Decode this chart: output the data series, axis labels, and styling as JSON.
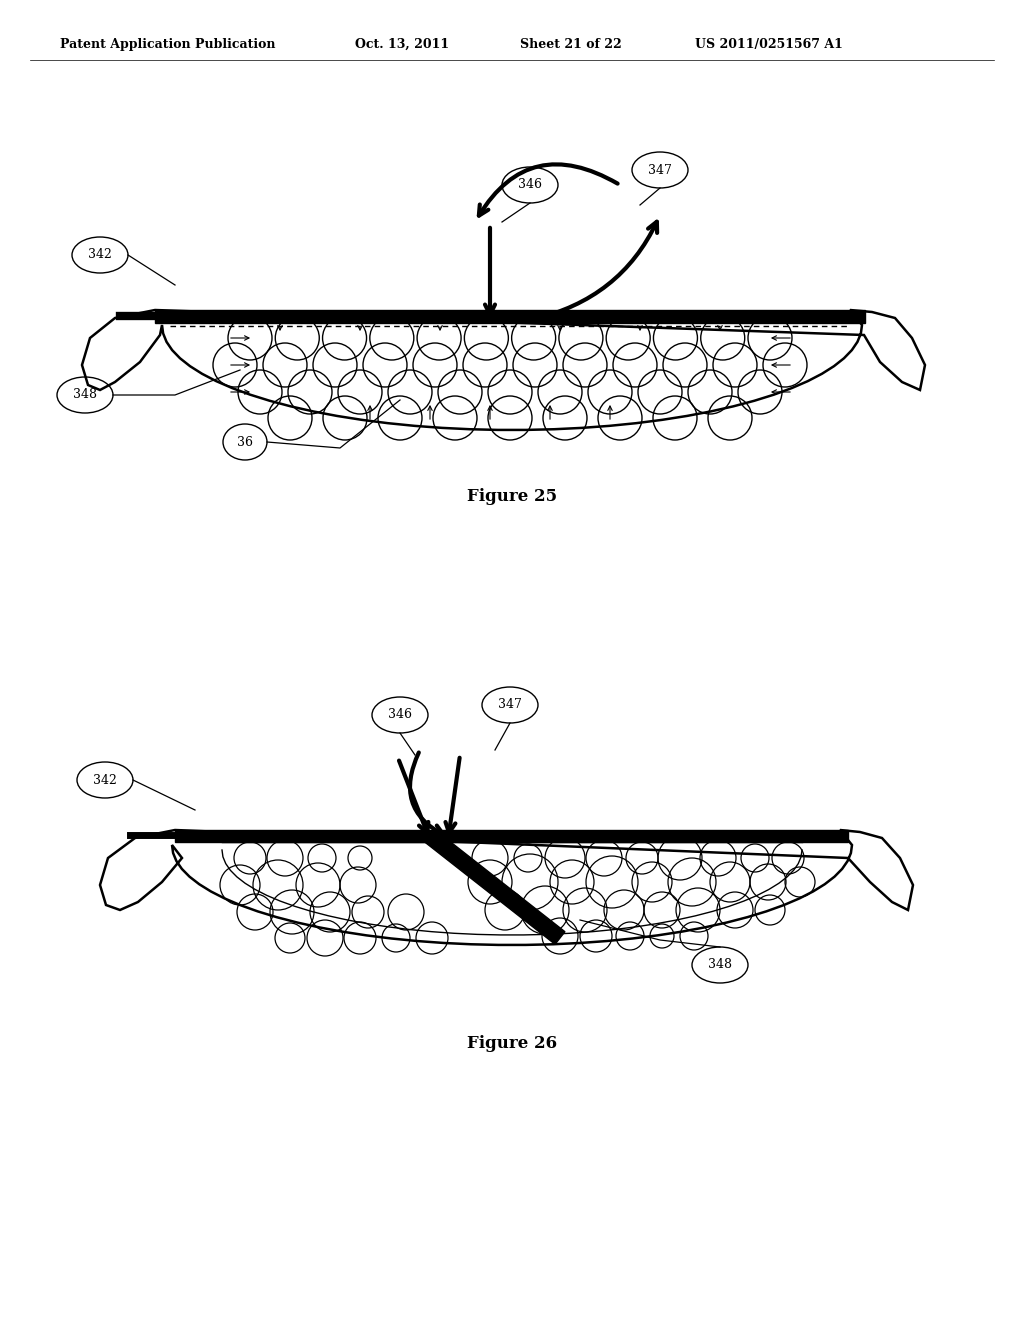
{
  "bg_color": "#ffffff",
  "header_text": "Patent Application Publication",
  "header_date": "Oct. 13, 2011",
  "header_sheet": "Sheet 21 of 22",
  "header_patent": "US 2011/0251567 A1",
  "fig25_title": "Figure 25",
  "fig26_title": "Figure 26"
}
